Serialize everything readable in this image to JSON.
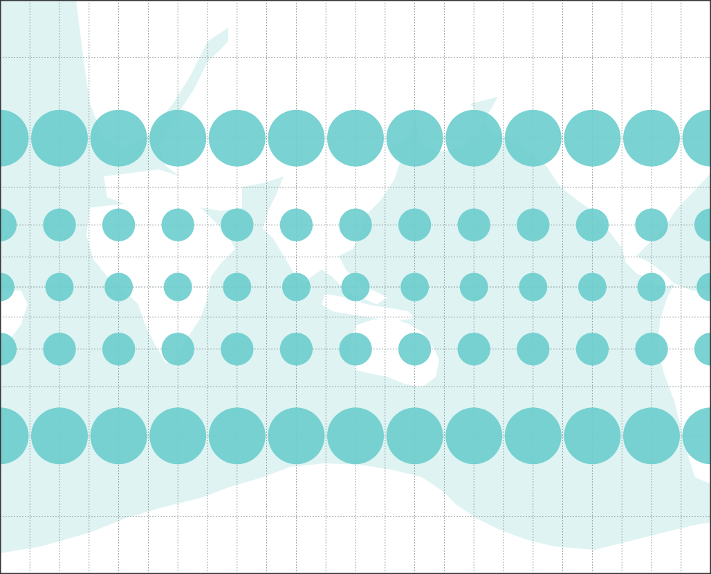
{
  "map": {
    "projection": "mercator",
    "colors": {
      "ocean": "#dff3f3",
      "land": "#ffffff",
      "indicatrix": "#6ccdcd",
      "graticule": "#8e9a9a",
      "frame": "#333333"
    },
    "graticule": {
      "style": "dotted",
      "spacing_degrees": 15
    },
    "tissot_indicatrix": {
      "latitudes": [
        60,
        30,
        0,
        -30,
        -60
      ],
      "longitudes": [
        -150,
        -120,
        -90,
        -60,
        -30,
        0,
        30,
        60,
        90,
        120,
        150,
        180
      ]
    }
  }
}
